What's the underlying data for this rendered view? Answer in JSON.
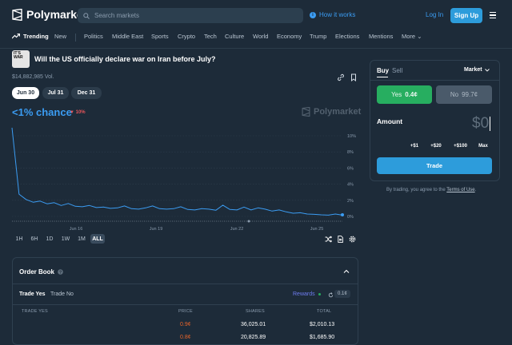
{
  "header": {
    "brand": "Polymarket",
    "search_placeholder": "Search markets",
    "how_it_works": "How it works",
    "login": "Log In",
    "signup": "Sign Up"
  },
  "nav": {
    "items": [
      "Trending",
      "New",
      "Politics",
      "Middle East",
      "Sports",
      "Crypto",
      "Tech",
      "Culture",
      "World",
      "Economy",
      "Trump",
      "Elections",
      "Mentions",
      "More"
    ]
  },
  "market": {
    "icon_text": "IT'S WAR",
    "title": "Will the US officially declare war on Iran before July?",
    "volume": "$14,882,985 Vol.",
    "dates": [
      "Jun 30",
      "Jul 31",
      "Dec 31"
    ],
    "selected_date": "Jun 30",
    "chance": "<1% chance",
    "delta": "▼ 10%",
    "watermark": "Polymarket"
  },
  "chart_data": {
    "type": "line",
    "x_ticks": [
      "Jun 16",
      "Jun 19",
      "Jun 22",
      "Jun 25"
    ],
    "y_ticks": [
      "10%",
      "8%",
      "6%",
      "4%",
      "2%",
      "0%"
    ],
    "ylim": [
      0,
      10
    ],
    "series": [
      {
        "color": "#3b9cf2",
        "values": [
          11,
          2.8,
          2.1,
          1.8,
          1.9,
          1.6,
          1.7,
          1.4,
          1.6,
          1.3,
          1.2,
          1.4,
          1.1,
          1.2,
          1.0,
          1.1,
          1.3,
          1.0,
          0.9,
          1.1,
          1.3,
          1.0,
          0.9,
          1.0,
          1.2,
          0.9,
          0.8,
          1.0,
          0.9,
          0.8,
          1.4,
          0.9,
          0.8,
          1.2,
          0.8,
          1.1,
          0.9,
          0.7,
          0.8,
          0.6,
          0.4,
          0.5,
          0.3,
          0.3,
          0.2,
          0.2,
          0.3,
          0.2
        ]
      }
    ]
  },
  "ranges": [
    "1H",
    "6H",
    "1D",
    "1W",
    "1M",
    "ALL"
  ],
  "selected_range": "ALL",
  "order_book": {
    "title": "Order Book",
    "tabs": [
      "Trade Yes",
      "Trade No"
    ],
    "rewards": "Rewards",
    "spread": "0.1¢",
    "columns": [
      "TRADE YES",
      "PRICE",
      "SHARES",
      "TOTAL"
    ],
    "rows": [
      {
        "price": "0.9¢",
        "shares": "36,025.01",
        "total": "$2,010.13"
      },
      {
        "price": "0.8¢",
        "shares": "20,825.89",
        "total": "$1,685.90"
      }
    ]
  },
  "trade": {
    "tabs": [
      "Buy",
      "Sell"
    ],
    "order_type": "Market",
    "yes_label": "Yes",
    "yes_price": "0.4¢",
    "no_label": "No",
    "no_price": "99.7¢",
    "amount_label": "Amount",
    "amount_value": "$0",
    "quick_amounts": [
      "+$1",
      "+$20",
      "+$100",
      "Max"
    ],
    "trade_button": "Trade",
    "terms_prefix": "By trading, you agree to the",
    "terms_link": "Terms of Use",
    "terms_suffix": "."
  },
  "colors": {
    "background": "#1d2b39",
    "accent": "#2d9cdb",
    "yes": "#27ae60",
    "no_bg": "#4a5a6a",
    "down": "#e8555a",
    "ask_price": "#e8642a"
  }
}
